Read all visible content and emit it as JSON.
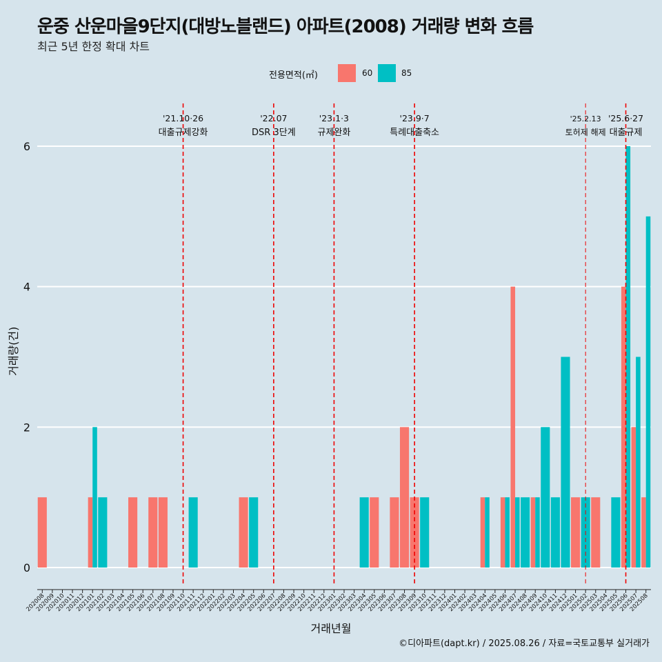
{
  "chart_data": {
    "type": "bar",
    "title": "운중 산운마을9단지(대방노블랜드) 아파트(2008) 거래량 변화 흐름",
    "subtitle": "최근 5년 한정 확대 차트",
    "xlabel": "거래년월",
    "ylabel": "거래량(건)",
    "ylim": [
      0,
      6.6
    ],
    "yticks": [
      0,
      2,
      4,
      6
    ],
    "grid": true,
    "legend": {
      "title": "전용면적(㎡)",
      "position": "top",
      "items": [
        {
          "label": "60",
          "color": "#F8766D"
        },
        {
          "label": "85",
          "color": "#00BFC4"
        }
      ]
    },
    "categories": [
      "202008",
      "202009",
      "202010",
      "202011",
      "202012",
      "202101",
      "202102",
      "202103",
      "202104",
      "202105",
      "202106",
      "202107",
      "202108",
      "202109",
      "202110",
      "202111",
      "202112",
      "202201",
      "202202",
      "202203",
      "202204",
      "202205",
      "202206",
      "202207",
      "202208",
      "202209",
      "202210",
      "202211",
      "202212",
      "202301",
      "202302",
      "202303",
      "202304",
      "202305",
      "202306",
      "202307",
      "202308",
      "202309",
      "202310",
      "202311",
      "202312",
      "202401",
      "202402",
      "202403",
      "202404",
      "202405",
      "202406",
      "202407",
      "202408",
      "202409",
      "202410",
      "202411",
      "202412",
      "202501",
      "202502",
      "202503",
      "202504",
      "202505",
      "202506",
      "202507",
      "202508"
    ],
    "series": [
      {
        "name": "60",
        "color": "#F8766D",
        "values": [
          1,
          0,
          0,
          0,
          0,
          1,
          0,
          0,
          0,
          1,
          0,
          1,
          1,
          0,
          0,
          0,
          0,
          0,
          0,
          0,
          1,
          0,
          0,
          0,
          0,
          0,
          0,
          0,
          0,
          0,
          0,
          0,
          0,
          1,
          0,
          1,
          2,
          1,
          0,
          0,
          0,
          0,
          0,
          0,
          1,
          0,
          1,
          4,
          0,
          1,
          0,
          0,
          0,
          1,
          0,
          1,
          0,
          0,
          4,
          2,
          1
        ]
      },
      {
        "name": "85",
        "color": "#00BFC4",
        "values": [
          0,
          0,
          0,
          0,
          0,
          2,
          1,
          0,
          0,
          0,
          0,
          0,
          0,
          0,
          0,
          1,
          0,
          0,
          0,
          0,
          0,
          1,
          0,
          0,
          0,
          0,
          0,
          0,
          0,
          0,
          0,
          0,
          1,
          0,
          0,
          0,
          0,
          0,
          1,
          0,
          0,
          0,
          0,
          0,
          1,
          0,
          1,
          1,
          1,
          1,
          2,
          1,
          3,
          0,
          1,
          0,
          0,
          1,
          6,
          3,
          5
        ]
      }
    ],
    "annotations": [
      {
        "date": "'21.10·26",
        "text": "대출규제강화",
        "position": 14.5,
        "thin": false
      },
      {
        "date": "'22.07",
        "text": "DSR 3단계",
        "position": 23.5,
        "thin": false
      },
      {
        "date": "'23.1·3",
        "text": "규제완화",
        "position": 29.5,
        "thin": false
      },
      {
        "date": "'23.9·7",
        "text": "특례대출축소",
        "position": 37.5,
        "thin": false
      },
      {
        "date": "'25.2.13",
        "text": "토허제 해제",
        "position": 54.5,
        "thin": true
      },
      {
        "date": "'25.6·27",
        "text": "대출규제",
        "position": 58.5,
        "thin": false
      }
    ],
    "caption": "©디아파트(dapt.kr) / 2025.08.26 / 자료=국토교통부 실거래가"
  }
}
